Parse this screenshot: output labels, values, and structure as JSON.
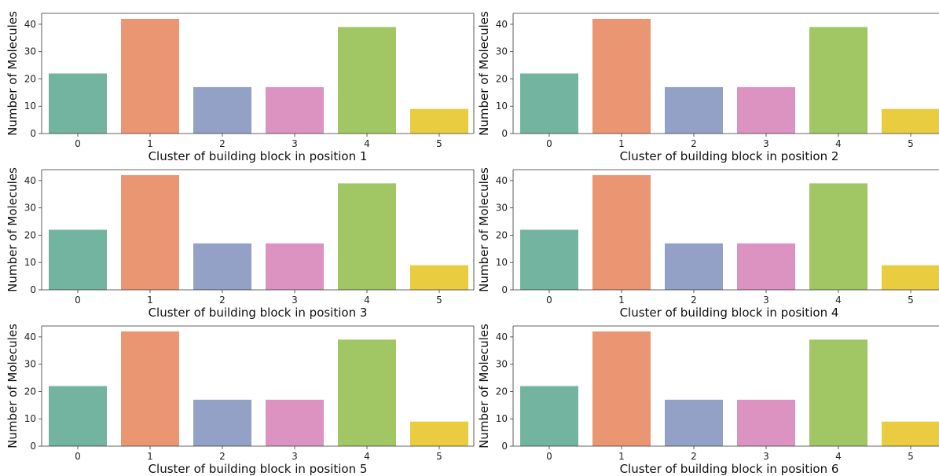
{
  "chart_data": [
    {
      "type": "bar",
      "categories": [
        "0",
        "1",
        "2",
        "3",
        "4",
        "5"
      ],
      "values": [
        22,
        42,
        17,
        17,
        39,
        9
      ],
      "xlabel": "Cluster of building block  in position 1",
      "ylabel": "Number of Molecules",
      "ylim": [
        0,
        44
      ],
      "yticks": [
        0,
        10,
        20,
        30,
        40
      ],
      "grid": false,
      "colors": [
        "#72b49f",
        "#eb9673",
        "#92a1c5",
        "#dc93c2",
        "#a1c764",
        "#e9cc40"
      ]
    },
    {
      "type": "bar",
      "categories": [
        "0",
        "1",
        "2",
        "3",
        "4",
        "5"
      ],
      "values": [
        22,
        42,
        17,
        17,
        39,
        9
      ],
      "xlabel": "Cluster of building block  in position 2",
      "ylabel": "Number of Molecules",
      "ylim": [
        0,
        44
      ],
      "yticks": [
        0,
        10,
        20,
        30,
        40
      ],
      "grid": false,
      "colors": [
        "#72b49f",
        "#eb9673",
        "#92a1c5",
        "#dc93c2",
        "#a1c764",
        "#e9cc40"
      ]
    },
    {
      "type": "bar",
      "categories": [
        "0",
        "1",
        "2",
        "3",
        "4",
        "5"
      ],
      "values": [
        22,
        42,
        17,
        17,
        39,
        9
      ],
      "xlabel": "Cluster of building block  in position 3",
      "ylabel": "Number of Molecules",
      "ylim": [
        0,
        44
      ],
      "yticks": [
        0,
        10,
        20,
        30,
        40
      ],
      "grid": false,
      "colors": [
        "#72b49f",
        "#eb9673",
        "#92a1c5",
        "#dc93c2",
        "#a1c764",
        "#e9cc40"
      ]
    },
    {
      "type": "bar",
      "categories": [
        "0",
        "1",
        "2",
        "3",
        "4",
        "5"
      ],
      "values": [
        22,
        42,
        17,
        17,
        39,
        9
      ],
      "xlabel": "Cluster of building block  in position 4",
      "ylabel": "Number of Molecules",
      "ylim": [
        0,
        44
      ],
      "yticks": [
        0,
        10,
        20,
        30,
        40
      ],
      "grid": false,
      "colors": [
        "#72b49f",
        "#eb9673",
        "#92a1c5",
        "#dc93c2",
        "#a1c764",
        "#e9cc40"
      ]
    },
    {
      "type": "bar",
      "categories": [
        "0",
        "1",
        "2",
        "3",
        "4",
        "5"
      ],
      "values": [
        22,
        42,
        17,
        17,
        39,
        9
      ],
      "xlabel": "Cluster of building block  in position 5",
      "ylabel": "Number of Molecules",
      "ylim": [
        0,
        44
      ],
      "yticks": [
        0,
        10,
        20,
        30,
        40
      ],
      "grid": false,
      "colors": [
        "#72b49f",
        "#eb9673",
        "#92a1c5",
        "#dc93c2",
        "#a1c764",
        "#e9cc40"
      ]
    },
    {
      "type": "bar",
      "categories": [
        "0",
        "1",
        "2",
        "3",
        "4",
        "5"
      ],
      "values": [
        22,
        42,
        17,
        17,
        39,
        9
      ],
      "xlabel": "Cluster of building block  in position 6",
      "ylabel": "Number of Molecules",
      "ylim": [
        0,
        44
      ],
      "yticks": [
        0,
        10,
        20,
        30,
        40
      ],
      "grid": false,
      "colors": [
        "#72b49f",
        "#eb9673",
        "#92a1c5",
        "#dc93c2",
        "#a1c764",
        "#e9cc40"
      ]
    }
  ]
}
